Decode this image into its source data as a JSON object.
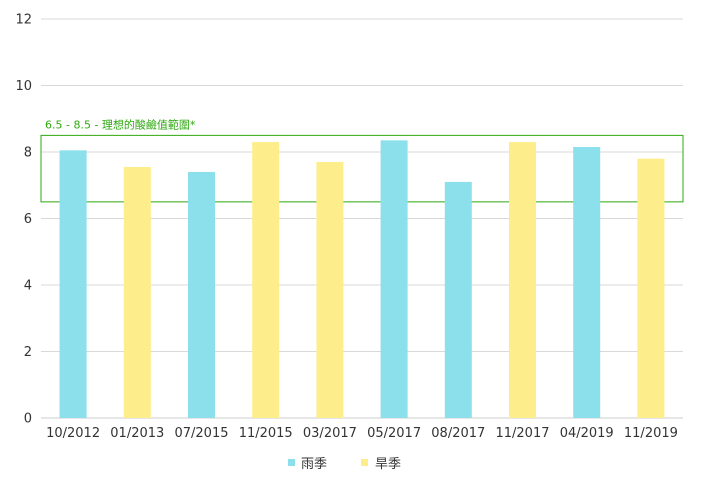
{
  "chart_data": {
    "type": "bar",
    "categories": [
      "10/2012",
      "01/2013",
      "07/2015",
      "11/2015",
      "03/2017",
      "05/2017",
      "08/2017",
      "11/2017",
      "04/2019",
      "11/2019"
    ],
    "values": [
      8.05,
      7.55,
      7.4,
      8.3,
      7.7,
      8.35,
      7.1,
      8.3,
      8.15,
      7.8
    ],
    "season_index": [
      0,
      1,
      0,
      1,
      1,
      0,
      0,
      1,
      0,
      1
    ],
    "series": [
      {
        "name": "雨季",
        "color": "#8be0ec"
      },
      {
        "name": "旱季",
        "color": "#fdee8b"
      }
    ],
    "ylim": [
      0,
      12
    ],
    "yticks": [
      0,
      2,
      4,
      6,
      8,
      10,
      12
    ],
    "grid": true,
    "legend_position": "bottom-center",
    "annotation": {
      "text": "6.5 - 8.5 - 理想的酸鹼值範圍*",
      "range": [
        6.5,
        8.5
      ],
      "color": "#2ea80f"
    },
    "gridline_color": "#d9d9d9"
  }
}
